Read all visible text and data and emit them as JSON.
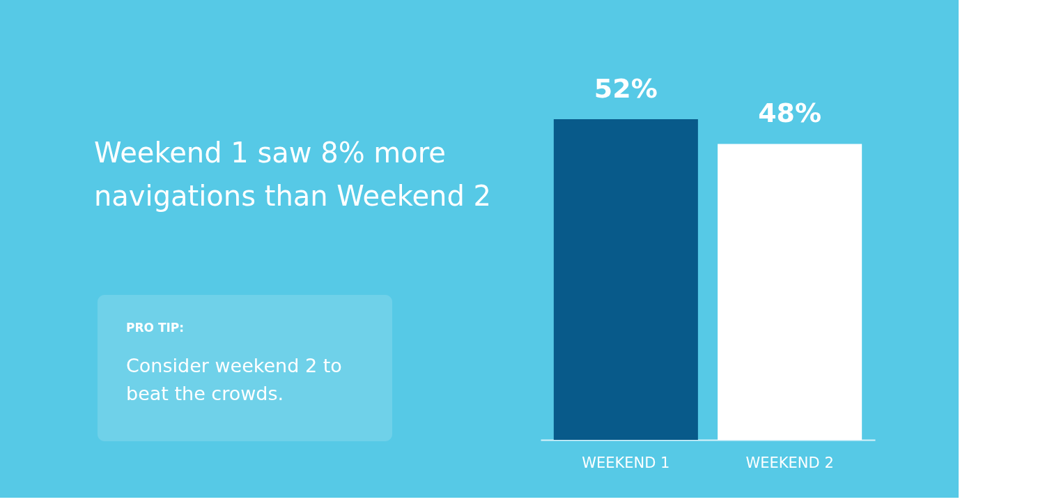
{
  "chart_data": {
    "type": "bar",
    "title": "Weekend 1 saw 8% more navigations than Weekend 2",
    "categories": [
      "WEEKEND 1",
      "WEEKEND 2"
    ],
    "values": [
      52,
      48
    ],
    "colors": [
      "#085a8a",
      "#ffffff"
    ],
    "value_labels": [
      "52%",
      "48%"
    ],
    "annotations": [
      "PRO TIP:",
      "Consider weekend 2 to beat the crowds."
    ]
  }
}
